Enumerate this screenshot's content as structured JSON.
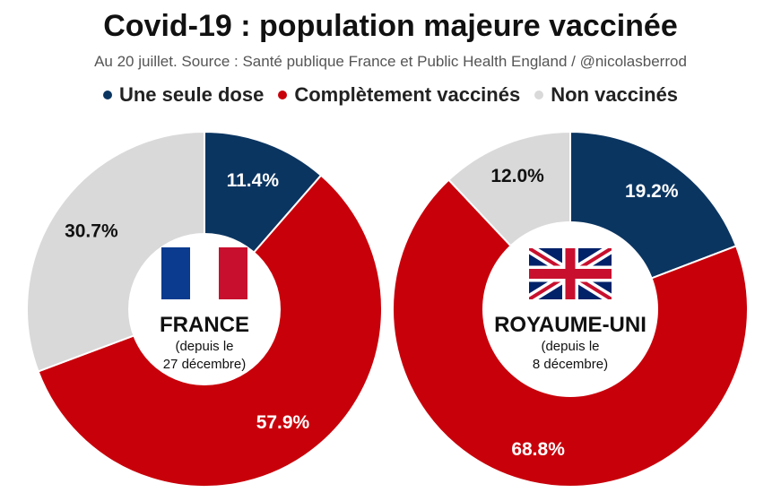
{
  "header": {
    "title": "Covid-19 : population majeure vaccinée",
    "subtitle": "Au 20 juillet. Source : Santé publique France et Public Health England / @nicolasberrod"
  },
  "legend": [
    {
      "label": "Une seule dose",
      "color": "#0b3561"
    },
    {
      "label": "Complètement vaccinés",
      "color": "#c8000a"
    },
    {
      "label": "Non vaccinés",
      "color": "#d9d9d9"
    }
  ],
  "chart_data": [
    {
      "type": "pie",
      "variant": "donut",
      "country": "FRANCE",
      "note_line1": "(depuis le",
      "note_line2": "27 décembre)",
      "flag": "france-flag",
      "categories": [
        "Une seule dose",
        "Complètement vaccinés",
        "Non vaccinés"
      ],
      "values": [
        11.4,
        57.9,
        30.7
      ],
      "labels": [
        "11.4%",
        "57.9%",
        "30.7%"
      ],
      "colors": [
        "#0b3561",
        "#c8000a",
        "#d9d9d9"
      ],
      "label_colors": [
        "#ffffff",
        "#ffffff",
        "#111111"
      ]
    },
    {
      "type": "pie",
      "variant": "donut",
      "country": "ROYAUME-UNI",
      "note_line1": "(depuis le",
      "note_line2": "8 décembre)",
      "flag": "uk-flag",
      "categories": [
        "Une seule dose",
        "Complètement vaccinés",
        "Non vaccinés"
      ],
      "values": [
        19.2,
        68.8,
        12.0
      ],
      "labels": [
        "19.2%",
        "68.8%",
        "12.0%"
      ],
      "colors": [
        "#0b3561",
        "#c8000a",
        "#d9d9d9"
      ],
      "label_colors": [
        "#ffffff",
        "#ffffff",
        "#111111"
      ]
    }
  ]
}
